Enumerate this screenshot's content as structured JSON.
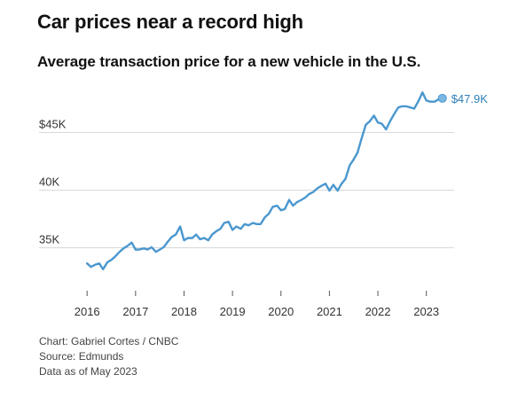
{
  "title": "Car prices near a record high",
  "subtitle": "Average transaction price for a new vehicle in the U.S.",
  "footer": {
    "credit": "Chart: Gabriel Cortes / CNBC",
    "source": "Source: Edmunds",
    "asof": "Data as of May 2023"
  },
  "chart_data": {
    "type": "line",
    "title": "Average transaction price for a new vehicle in the U.S.",
    "xlabel": "",
    "ylabel": "",
    "xlim": [
      2015.85,
      2023.5
    ],
    "ylim": [
      32,
      48.5
    ],
    "yticks": [
      {
        "value": 35,
        "label": "35K"
      },
      {
        "value": 40,
        "label": "40K"
      },
      {
        "value": 45,
        "label": "$45K"
      }
    ],
    "xticks": [
      {
        "value": 2016,
        "label": "2016"
      },
      {
        "value": 2017,
        "label": "2017"
      },
      {
        "value": 2018,
        "label": "2018"
      },
      {
        "value": 2019,
        "label": "2019"
      },
      {
        "value": 2020,
        "label": "2020"
      },
      {
        "value": 2021,
        "label": "2021"
      },
      {
        "value": 2022,
        "label": "2022"
      },
      {
        "value": 2023,
        "label": "2023"
      }
    ],
    "grid": "horizontal",
    "color": "#4a97cf",
    "end_label": "$47.9K",
    "series": [
      {
        "x": [
          2016.0,
          2016.08,
          2016.17,
          2016.25,
          2016.33,
          2016.42,
          2016.5,
          2016.58,
          2016.67,
          2016.75,
          2016.83,
          2016.92,
          2017.0,
          2017.08,
          2017.17,
          2017.25,
          2017.33,
          2017.42,
          2017.5,
          2017.58,
          2017.67,
          2017.75,
          2017.83,
          2017.92,
          2018.0,
          2018.08,
          2018.17,
          2018.25,
          2018.33,
          2018.42,
          2018.5,
          2018.58,
          2018.67,
          2018.75,
          2018.83,
          2018.92,
          2019.0,
          2019.08,
          2019.17,
          2019.25,
          2019.33,
          2019.42,
          2019.5,
          2019.58,
          2019.67,
          2019.75,
          2019.83,
          2019.92,
          2020.0,
          2020.08,
          2020.17,
          2020.25,
          2020.33,
          2020.42,
          2020.5,
          2020.58,
          2020.67,
          2020.75,
          2020.83,
          2020.92,
          2021.0,
          2021.08,
          2021.17,
          2021.25,
          2021.33,
          2021.42,
          2021.5,
          2021.58,
          2021.67,
          2021.75,
          2021.83,
          2021.92,
          2022.0,
          2022.08,
          2022.17,
          2022.25,
          2022.33,
          2022.42,
          2022.5,
          2022.58,
          2022.67,
          2022.75,
          2022.83,
          2022.92,
          2023.0,
          2023.08,
          2023.17,
          2023.25,
          2023.33
        ],
        "y": [
          33.6,
          33.3,
          33.5,
          33.6,
          33.1,
          33.7,
          33.9,
          34.2,
          34.6,
          34.9,
          35.1,
          35.4,
          34.8,
          34.8,
          34.9,
          34.8,
          35.0,
          34.6,
          34.8,
          35.0,
          35.5,
          35.9,
          36.1,
          36.8,
          35.6,
          35.8,
          35.8,
          36.1,
          35.7,
          35.8,
          35.6,
          36.1,
          36.4,
          36.6,
          37.1,
          37.2,
          36.5,
          36.8,
          36.6,
          37.0,
          36.9,
          37.1,
          37.0,
          37.0,
          37.6,
          37.9,
          38.5,
          38.6,
          38.2,
          38.3,
          39.1,
          38.6,
          38.9,
          39.1,
          39.3,
          39.6,
          39.8,
          40.1,
          40.3,
          40.5,
          39.9,
          40.4,
          39.9,
          40.5,
          40.9,
          42.1,
          42.6,
          43.2,
          44.5,
          45.6,
          45.9,
          46.4,
          45.8,
          45.7,
          45.2,
          45.9,
          46.5,
          47.1,
          47.2,
          47.2,
          47.1,
          47.0,
          47.6,
          48.4,
          47.7,
          47.6,
          47.6,
          47.8,
          47.9
        ]
      }
    ]
  }
}
